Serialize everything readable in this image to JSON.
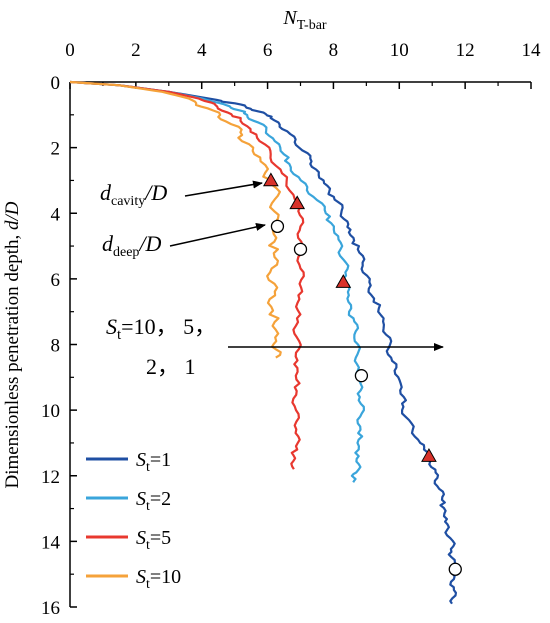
{
  "chart_data": {
    "type": "line",
    "xlabel_main": "N",
    "xlabel_sub": "T-bar",
    "ylabel_main": "Dimensionless penetration depth, ",
    "ylabel_italic": "d/D",
    "xlim": [
      0,
      14
    ],
    "ylim": [
      0,
      16
    ],
    "x_ticks": [
      "0",
      "2",
      "4",
      "6",
      "8",
      "10",
      "12",
      "14"
    ],
    "y_ticks": [
      "0",
      "2",
      "4",
      "6",
      "8",
      "10",
      "12",
      "14",
      "16"
    ],
    "x_axis_position": "top",
    "y_axis_inverted": true,
    "grid": false,
    "legend_position": "bottom-left",
    "series": [
      {
        "name": "St=1",
        "name_main": "S",
        "name_sub": "t",
        "name_rest": "=1",
        "color": "#1f4fa3",
        "points": [
          [
            0,
            0
          ],
          [
            1.5,
            0.1
          ],
          [
            3.0,
            0.3
          ],
          [
            4.2,
            0.5
          ],
          [
            5.0,
            0.65
          ],
          [
            5.6,
            0.85
          ],
          [
            6.2,
            1.1
          ],
          [
            6.6,
            1.5
          ],
          [
            7.0,
            2.0
          ],
          [
            7.4,
            2.5
          ],
          [
            7.7,
            3.0
          ],
          [
            8.0,
            3.5
          ],
          [
            8.3,
            4.0
          ],
          [
            8.5,
            4.5
          ],
          [
            8.7,
            5.0
          ],
          [
            8.9,
            5.6
          ],
          [
            9.1,
            6.2
          ],
          [
            9.3,
            6.8
          ],
          [
            9.5,
            7.4
          ],
          [
            9.7,
            8.0
          ],
          [
            9.8,
            8.6
          ],
          [
            10.0,
            9.2
          ],
          [
            10.1,
            9.8
          ],
          [
            10.3,
            10.4
          ],
          [
            10.6,
            11.0
          ],
          [
            10.9,
            11.4
          ],
          [
            11.1,
            11.9
          ],
          [
            11.2,
            12.4
          ],
          [
            11.35,
            12.9
          ],
          [
            11.45,
            13.4
          ],
          [
            11.55,
            13.9
          ],
          [
            11.6,
            14.4
          ],
          [
            11.7,
            14.9
          ],
          [
            11.65,
            15.4
          ],
          [
            11.6,
            15.9
          ]
        ]
      },
      {
        "name": "St=2",
        "name_main": "S",
        "name_sub": "t",
        "name_rest": "=2",
        "color": "#3aa5db",
        "points": [
          [
            0,
            0
          ],
          [
            1.5,
            0.1
          ],
          [
            3.0,
            0.3
          ],
          [
            4.0,
            0.5
          ],
          [
            4.7,
            0.7
          ],
          [
            5.3,
            0.95
          ],
          [
            5.8,
            1.3
          ],
          [
            6.2,
            1.8
          ],
          [
            6.6,
            2.4
          ],
          [
            7.0,
            3.0
          ],
          [
            7.5,
            3.6
          ],
          [
            7.9,
            4.2
          ],
          [
            8.2,
            4.8
          ],
          [
            8.3,
            5.4
          ],
          [
            8.4,
            6.0
          ],
          [
            8.5,
            6.6
          ],
          [
            8.6,
            7.2
          ],
          [
            8.7,
            7.8
          ],
          [
            8.75,
            8.4
          ],
          [
            8.8,
            9.0
          ],
          [
            8.8,
            9.6
          ],
          [
            8.85,
            10.2
          ],
          [
            8.8,
            10.8
          ],
          [
            8.7,
            11.4
          ],
          [
            8.7,
            11.9
          ],
          [
            8.6,
            12.2
          ]
        ]
      },
      {
        "name": "St=5",
        "name_main": "S",
        "name_sub": "t",
        "name_rest": "=5",
        "color": "#e8382f",
        "points": [
          [
            0,
            0
          ],
          [
            1.5,
            0.1
          ],
          [
            3.0,
            0.3
          ],
          [
            3.9,
            0.5
          ],
          [
            4.5,
            0.75
          ],
          [
            5.1,
            1.1
          ],
          [
            5.6,
            1.6
          ],
          [
            6.1,
            2.2
          ],
          [
            6.5,
            2.9
          ],
          [
            6.9,
            3.7
          ],
          [
            7.0,
            4.4
          ],
          [
            7.0,
            5.1
          ],
          [
            7.0,
            5.8
          ],
          [
            6.95,
            6.5
          ],
          [
            6.9,
            7.2
          ],
          [
            6.9,
            7.9
          ],
          [
            6.85,
            8.6
          ],
          [
            6.9,
            9.3
          ],
          [
            6.85,
            10.0
          ],
          [
            6.9,
            10.7
          ],
          [
            6.85,
            11.3
          ],
          [
            6.8,
            11.8
          ]
        ]
      },
      {
        "name": "St=10",
        "name_main": "S",
        "name_sub": "t",
        "name_rest": "=10",
        "color": "#f5a23a",
        "points": [
          [
            0,
            0
          ],
          [
            1.5,
            0.1
          ],
          [
            2.8,
            0.3
          ],
          [
            3.6,
            0.5
          ],
          [
            4.2,
            0.8
          ],
          [
            4.8,
            1.2
          ],
          [
            5.3,
            1.7
          ],
          [
            5.8,
            2.3
          ],
          [
            6.1,
            3.0
          ],
          [
            6.25,
            3.7
          ],
          [
            6.3,
            4.4
          ],
          [
            6.2,
            5.1
          ],
          [
            6.1,
            5.8
          ],
          [
            6.2,
            6.5
          ],
          [
            6.15,
            7.2
          ],
          [
            6.2,
            7.9
          ],
          [
            6.25,
            8.4
          ]
        ]
      }
    ],
    "annotations": [
      {
        "label_main": "d",
        "label_sub": "cavity",
        "label_rest": "/D"
      },
      {
        "label_main": "d",
        "label_sub": "deep",
        "label_rest": "/D"
      },
      {
        "line1_main": "S",
        "line1_sub": "t",
        "line1_rest": "=10， 5，",
        "line2": "2， 1"
      }
    ],
    "triangle_markers": [
      [
        6.1,
        3.0
      ],
      [
        6.9,
        3.7
      ],
      [
        8.3,
        6.1
      ],
      [
        10.9,
        11.4
      ]
    ],
    "circle_markers": [
      [
        6.3,
        4.4
      ],
      [
        7.0,
        5.1
      ],
      [
        8.85,
        8.95
      ],
      [
        11.7,
        14.85
      ]
    ],
    "colors": {
      "triangle_fill": "#d8322a",
      "circle_fill": "#ffffff",
      "arrow": "#000000"
    }
  }
}
